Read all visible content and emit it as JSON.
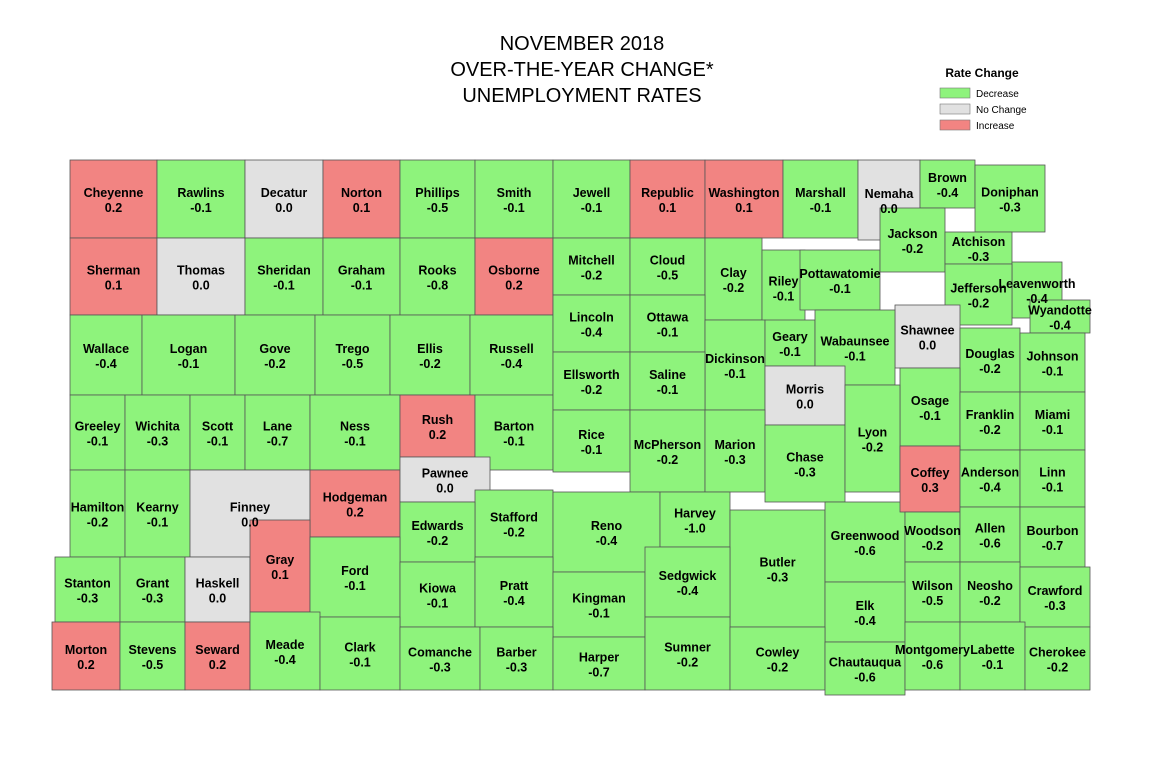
{
  "header": {
    "title_lines": [
      "NOVEMBER 2018",
      "OVER-THE-YEAR CHANGE*",
      "UNEMPLOYMENT RATES"
    ]
  },
  "legend": {
    "title": "Rate Change",
    "items": [
      {
        "label": "Decrease",
        "color": "#8ef37c"
      },
      {
        "label": "No Change",
        "color": "#e1e1e1"
      },
      {
        "label": "Increase",
        "color": "#f28482"
      }
    ]
  },
  "counties": [
    {
      "name": "Cheyenne",
      "value": 0.2
    },
    {
      "name": "Rawlins",
      "value": -0.1
    },
    {
      "name": "Decatur",
      "value": 0,
      "value_label": "0.0"
    },
    {
      "name": "Norton",
      "value": 0.1
    },
    {
      "name": "Phillips",
      "value": -0.5
    },
    {
      "name": "Smith",
      "value": -0.1
    },
    {
      "name": "Jewell",
      "value": -0.1
    },
    {
      "name": "Republic",
      "value": 0.1
    },
    {
      "name": "Washington",
      "value": 0.1
    },
    {
      "name": "Marshall",
      "value": -0.1
    },
    {
      "name": "Nemaha",
      "value": 0,
      "value_label": "0.0"
    },
    {
      "name": "Brown",
      "value": -0.4
    },
    {
      "name": "Doniphan",
      "value": -0.3
    },
    {
      "name": "Sherman",
      "value": 0.1
    },
    {
      "name": "Thomas",
      "value": 0,
      "value_label": "0.0"
    },
    {
      "name": "Sheridan",
      "value": -0.1
    },
    {
      "name": "Graham",
      "value": -0.1
    },
    {
      "name": "Rooks",
      "value": -0.8
    },
    {
      "name": "Osborne",
      "value": 0.2
    },
    {
      "name": "Mitchell",
      "value": -0.2
    },
    {
      "name": "Cloud",
      "value": -0.5
    },
    {
      "name": "Clay",
      "value": -0.2
    },
    {
      "name": "Riley",
      "value": -0.1
    },
    {
      "name": "Pottawatomie",
      "value": -0.1
    },
    {
      "name": "Jackson",
      "value": -0.2
    },
    {
      "name": "Atchison",
      "value": -0.3
    },
    {
      "name": "Leavenworth",
      "value": -0.4
    },
    {
      "name": "Jefferson",
      "value": -0.2
    },
    {
      "name": "Wyandotte",
      "value": -0.4
    },
    {
      "name": "Shawnee",
      "value": 0,
      "value_label": "0.0"
    },
    {
      "name": "Wallace",
      "value": -0.4
    },
    {
      "name": "Logan",
      "value": -0.1
    },
    {
      "name": "Gove",
      "value": -0.2
    },
    {
      "name": "Trego",
      "value": -0.5
    },
    {
      "name": "Ellis",
      "value": -0.2
    },
    {
      "name": "Russell",
      "value": -0.4
    },
    {
      "name": "Lincoln",
      "value": -0.4
    },
    {
      "name": "Ottawa",
      "value": -0.1
    },
    {
      "name": "Dickinson",
      "value": -0.1
    },
    {
      "name": "Geary",
      "value": -0.1
    },
    {
      "name": "Wabaunsee",
      "value": -0.1
    },
    {
      "name": "Douglas",
      "value": -0.2
    },
    {
      "name": "Johnson",
      "value": -0.1
    },
    {
      "name": "Greeley",
      "value": -0.1
    },
    {
      "name": "Wichita",
      "value": -0.3
    },
    {
      "name": "Scott",
      "value": -0.1
    },
    {
      "name": "Lane",
      "value": -0.7
    },
    {
      "name": "Ness",
      "value": -0.1
    },
    {
      "name": "Rush",
      "value": 0.2
    },
    {
      "name": "Barton",
      "value": -0.1
    },
    {
      "name": "Ellsworth",
      "value": -0.2
    },
    {
      "name": "Saline",
      "value": -0.1
    },
    {
      "name": "Morris",
      "value": 0,
      "value_label": "0.0"
    },
    {
      "name": "Osage",
      "value": -0.1
    },
    {
      "name": "Franklin",
      "value": -0.2
    },
    {
      "name": "Miami",
      "value": -0.1
    },
    {
      "name": "Rice",
      "value": -0.1
    },
    {
      "name": "McPherson",
      "value": -0.2
    },
    {
      "name": "Marion",
      "value": -0.3
    },
    {
      "name": "Chase",
      "value": -0.3
    },
    {
      "name": "Lyon",
      "value": -0.2
    },
    {
      "name": "Hamilton",
      "value": -0.2
    },
    {
      "name": "Kearny",
      "value": -0.1
    },
    {
      "name": "Finney",
      "value": 0,
      "value_label": "0.0"
    },
    {
      "name": "Hodgeman",
      "value": 0.2
    },
    {
      "name": "Pawnee",
      "value": 0,
      "value_label": "0.0"
    },
    {
      "name": "Stafford",
      "value": -0.2
    },
    {
      "name": "Edwards",
      "value": -0.2
    },
    {
      "name": "Reno",
      "value": -0.4
    },
    {
      "name": "Harvey",
      "value": -1,
      "value_label": "-1.0"
    },
    {
      "name": "Butler",
      "value": -0.3
    },
    {
      "name": "Greenwood",
      "value": -0.6
    },
    {
      "name": "Coffey",
      "value": 0.3
    },
    {
      "name": "Anderson",
      "value": -0.4
    },
    {
      "name": "Linn",
      "value": -0.1
    },
    {
      "name": "Woodson",
      "value": -0.2
    },
    {
      "name": "Allen",
      "value": -0.6
    },
    {
      "name": "Bourbon",
      "value": -0.7
    },
    {
      "name": "Stanton",
      "value": -0.3
    },
    {
      "name": "Grant",
      "value": -0.3
    },
    {
      "name": "Haskell",
      "value": 0,
      "value_label": "0.0"
    },
    {
      "name": "Gray",
      "value": 0.1
    },
    {
      "name": "Ford",
      "value": -0.1
    },
    {
      "name": "Kiowa",
      "value": -0.1
    },
    {
      "name": "Pratt",
      "value": -0.4
    },
    {
      "name": "Kingman",
      "value": -0.1
    },
    {
      "name": "Sedgwick",
      "value": -0.4
    },
    {
      "name": "Wilson",
      "value": -0.5
    },
    {
      "name": "Neosho",
      "value": -0.2
    },
    {
      "name": "Crawford",
      "value": -0.3
    },
    {
      "name": "Elk",
      "value": -0.4
    },
    {
      "name": "Morton",
      "value": 0.2
    },
    {
      "name": "Stevens",
      "value": -0.5
    },
    {
      "name": "Seward",
      "value": 0.2
    },
    {
      "name": "Meade",
      "value": -0.4
    },
    {
      "name": "Clark",
      "value": -0.1
    },
    {
      "name": "Comanche",
      "value": -0.3
    },
    {
      "name": "Barber",
      "value": -0.3
    },
    {
      "name": "Harper",
      "value": -0.7
    },
    {
      "name": "Sumner",
      "value": -0.2
    },
    {
      "name": "Cowley",
      "value": -0.2
    },
    {
      "name": "Chautauqua",
      "value": -0.6
    },
    {
      "name": "Montgomery",
      "value": -0.6
    },
    {
      "name": "Labette",
      "value": -0.1
    },
    {
      "name": "Cherokee",
      "value": -0.2
    }
  ]
}
